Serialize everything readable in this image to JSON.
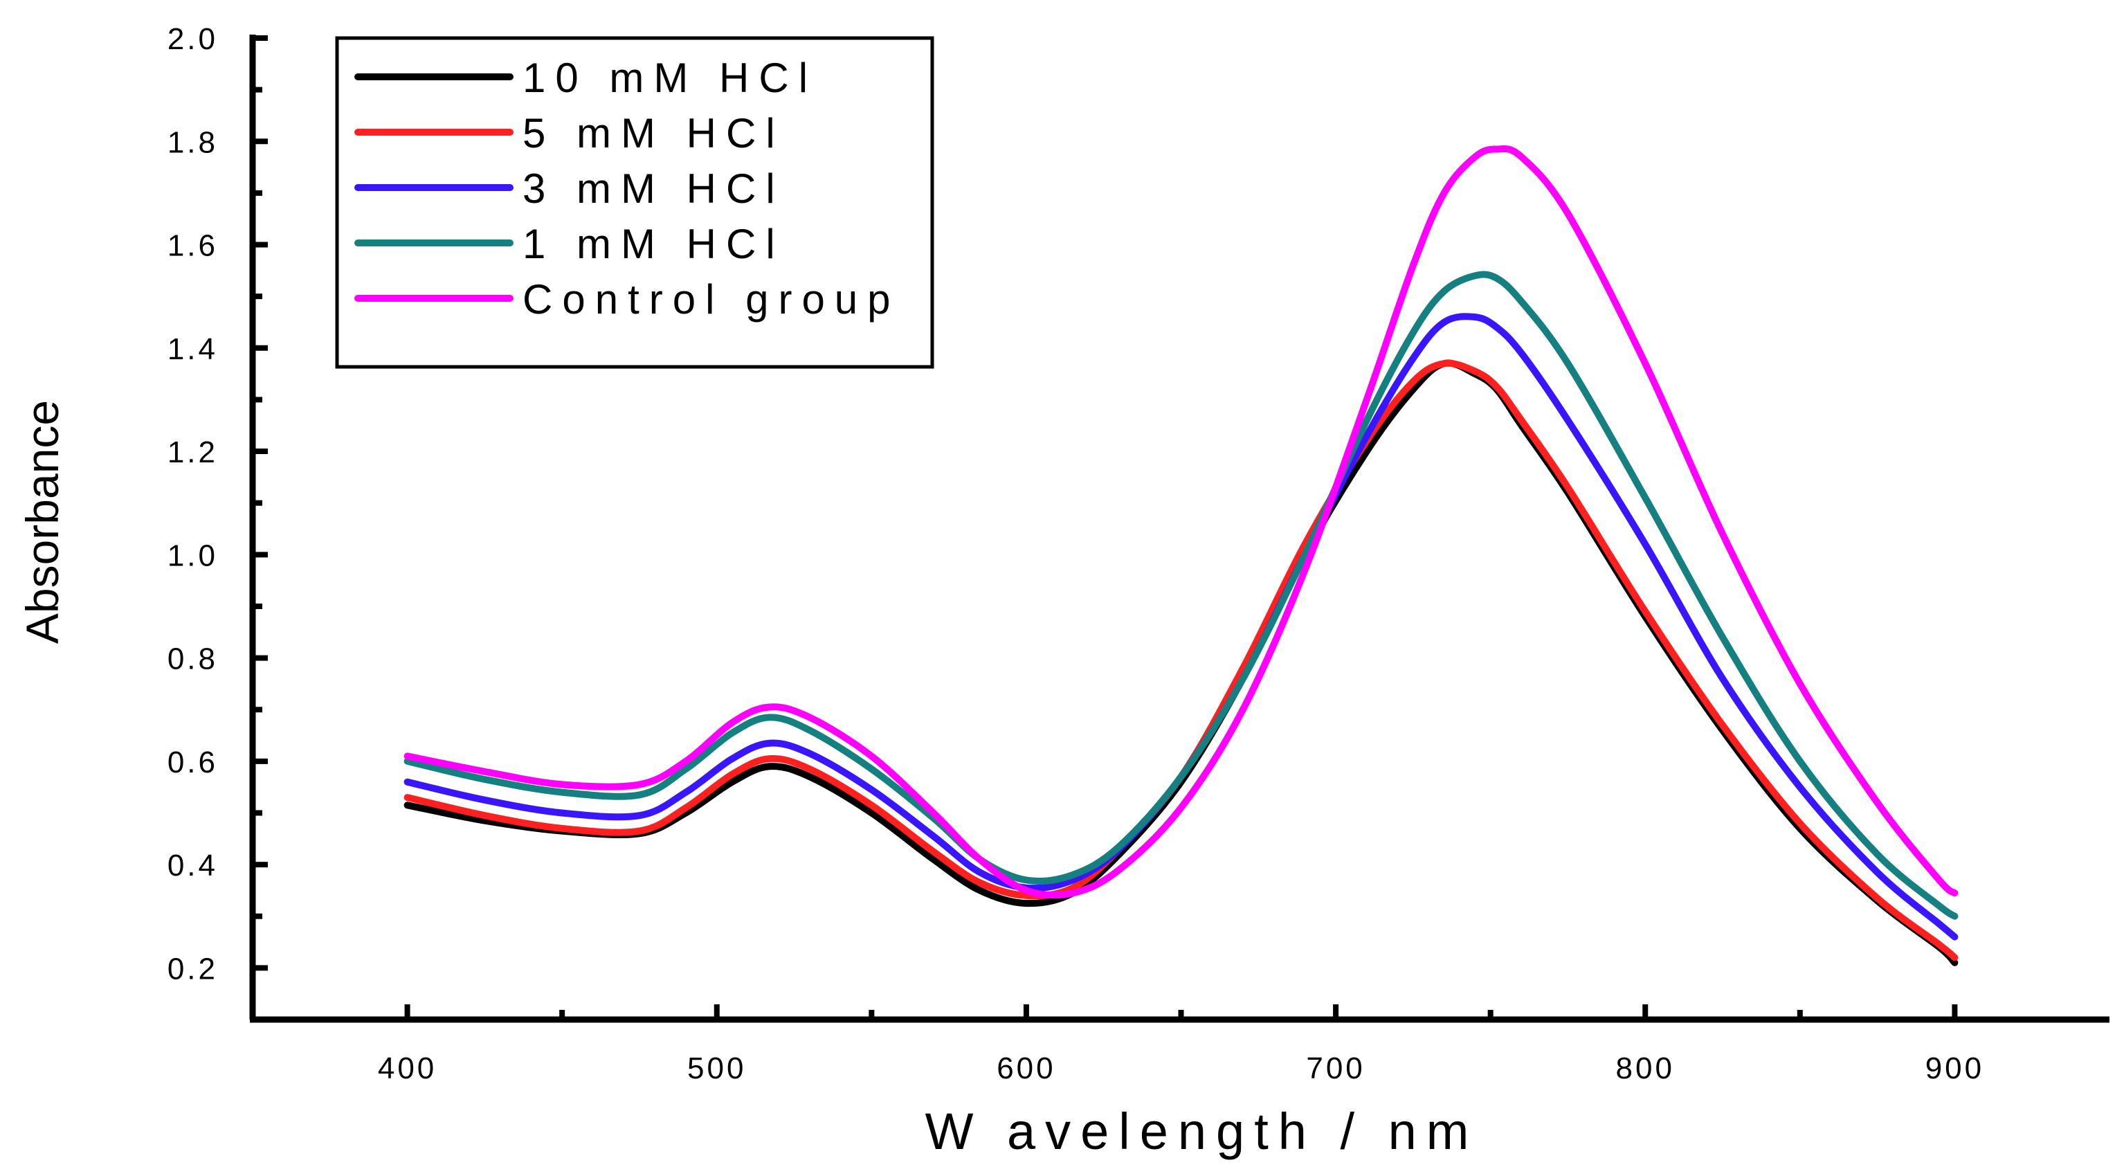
{
  "chart_data": {
    "type": "line",
    "title": "",
    "xlabel": "W avelength / nm",
    "ylabel": "Absorbance",
    "xlim": [
      350,
      950
    ],
    "ylim": [
      0.1,
      2.0
    ],
    "x_ticks": [
      400,
      500,
      600,
      700,
      800,
      900
    ],
    "x_tick_labels": [
      "400",
      "500",
      "600",
      "700",
      "800",
      "900"
    ],
    "y_ticks": [
      0.2,
      0.4,
      0.6,
      0.8,
      1.0,
      1.2,
      1.4,
      1.6,
      1.8,
      2.0
    ],
    "y_tick_labels": [
      "0.2",
      "0.4",
      "0.6",
      "0.8",
      "1.0",
      "1.2",
      "1.4",
      "1.6",
      "1.8",
      "2.0"
    ],
    "legend_position": "top-left",
    "x": [
      400,
      425,
      450,
      475,
      490,
      505,
      517,
      530,
      550,
      570,
      585,
      600,
      615,
      630,
      650,
      670,
      690,
      710,
      725,
      735,
      745,
      752,
      760,
      775,
      800,
      825,
      850,
      875,
      895,
      900
    ],
    "series": [
      {
        "name": "10 mM HCl",
        "label": "10 mM HCl",
        "color": "#000000",
        "values": [
          0.515,
          0.485,
          0.465,
          0.46,
          0.5,
          0.56,
          0.59,
          0.57,
          0.5,
          0.41,
          0.35,
          0.325,
          0.345,
          0.42,
          0.56,
          0.76,
          1.0,
          1.2,
          1.32,
          1.37,
          1.35,
          1.32,
          1.25,
          1.12,
          0.88,
          0.66,
          0.47,
          0.33,
          0.24,
          0.21
        ]
      },
      {
        "name": "5 mM HCl",
        "label": "5 mM HCl",
        "color": "#ff2020",
        "values": [
          0.53,
          0.495,
          0.47,
          0.465,
          0.51,
          0.575,
          0.605,
          0.585,
          0.515,
          0.425,
          0.365,
          0.34,
          0.355,
          0.43,
          0.57,
          0.78,
          1.02,
          1.22,
          1.335,
          1.37,
          1.355,
          1.325,
          1.26,
          1.13,
          0.89,
          0.67,
          0.48,
          0.335,
          0.245,
          0.22
        ]
      },
      {
        "name": "3 mM HCl",
        "label": "3 mM HCl",
        "color": "#3a16ff",
        "values": [
          0.56,
          0.525,
          0.5,
          0.495,
          0.54,
          0.605,
          0.635,
          0.615,
          0.545,
          0.455,
          0.385,
          0.355,
          0.37,
          0.43,
          0.57,
          0.76,
          1.0,
          1.23,
          1.38,
          1.45,
          1.46,
          1.44,
          1.39,
          1.26,
          1.02,
          0.76,
          0.55,
          0.385,
          0.285,
          0.26
        ]
      },
      {
        "name": "1 mM HCl",
        "label": "1 mM HCl",
        "color": "#168080",
        "values": [
          0.6,
          0.565,
          0.54,
          0.535,
          0.585,
          0.655,
          0.685,
          0.66,
          0.585,
          0.49,
          0.41,
          0.37,
          0.38,
          0.435,
          0.57,
          0.76,
          1.0,
          1.26,
          1.43,
          1.51,
          1.54,
          1.535,
          1.49,
          1.37,
          1.11,
          0.84,
          0.6,
          0.42,
          0.32,
          0.3
        ]
      },
      {
        "name": "Control group",
        "label": "Control group",
        "color": "#ff00ff",
        "values": [
          0.61,
          0.58,
          0.555,
          0.555,
          0.6,
          0.675,
          0.705,
          0.685,
          0.61,
          0.5,
          0.41,
          0.35,
          0.345,
          0.39,
          0.51,
          0.7,
          0.97,
          1.3,
          1.56,
          1.7,
          1.77,
          1.785,
          1.77,
          1.66,
          1.37,
          1.04,
          0.75,
          0.52,
          0.37,
          0.345
        ]
      }
    ]
  }
}
